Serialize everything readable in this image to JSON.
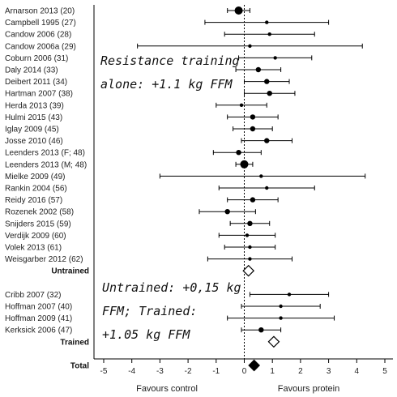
{
  "chart_data": {
    "type": "forest",
    "x_range": [
      -5,
      5
    ],
    "x_ticks": [
      -5,
      -4,
      -3,
      -2,
      -1,
      0,
      1,
      2,
      3,
      4,
      5
    ],
    "x_label_left": "Favours control",
    "x_label_right": "Favours protein",
    "reference_line": 0,
    "annotations": [
      {
        "name": "resistance-training",
        "lines": [
          "Resistance training",
          "alone: +1.1 kg FFM"
        ]
      },
      {
        "name": "untrained-trained",
        "lines": [
          "Untrained: +0,15 kg",
          "FFM; Trained:",
          "+1.05 kg FFM"
        ]
      }
    ],
    "rows": [
      {
        "label": "Arnarson 2013 (20)",
        "kind": "study",
        "est": -0.2,
        "lo": -0.6,
        "hi": 0.2,
        "size": "large"
      },
      {
        "label": "Campbell 1995 (27)",
        "kind": "study",
        "est": 0.8,
        "lo": -1.4,
        "hi": 3.0,
        "size": "small"
      },
      {
        "label": "Candow 2006 (28)",
        "kind": "study",
        "est": 0.9,
        "lo": -0.7,
        "hi": 2.5,
        "size": "small"
      },
      {
        "label": "Candow 2006a (29)",
        "kind": "study",
        "est": 0.2,
        "lo": -3.8,
        "hi": 4.2,
        "size": "small"
      },
      {
        "label": "Coburn 2006 (31)",
        "kind": "study",
        "est": 1.1,
        "lo": -0.2,
        "hi": 2.4,
        "size": "small"
      },
      {
        "label": "Daly 2014 (33)",
        "kind": "study",
        "est": 0.5,
        "lo": -0.3,
        "hi": 1.3,
        "size": "medium"
      },
      {
        "label": "Deibert 2011 (34)",
        "kind": "study",
        "est": 0.8,
        "lo": 0.0,
        "hi": 1.6,
        "size": "medium"
      },
      {
        "label": "Hartman 2007 (38)",
        "kind": "study",
        "est": 0.9,
        "lo": 0.0,
        "hi": 1.8,
        "size": "medium"
      },
      {
        "label": "Herda 2013 (39)",
        "kind": "study",
        "est": -0.1,
        "lo": -1.0,
        "hi": 0.8,
        "size": "small"
      },
      {
        "label": "Hulmi 2015 (43)",
        "kind": "study",
        "est": 0.3,
        "lo": -0.6,
        "hi": 1.2,
        "size": "medium"
      },
      {
        "label": "Iglay 2009 (45)",
        "kind": "study",
        "est": 0.3,
        "lo": -0.4,
        "hi": 1.0,
        "size": "medium"
      },
      {
        "label": "Josse 2010 (46)",
        "kind": "study",
        "est": 0.8,
        "lo": -0.1,
        "hi": 1.7,
        "size": "medium"
      },
      {
        "label": "Leenders 2013 (F; 48)",
        "kind": "study",
        "est": -0.2,
        "lo": -1.1,
        "hi": 0.6,
        "size": "medium"
      },
      {
        "label": "Leenders 2013 (M; 48)",
        "kind": "study",
        "est": 0.0,
        "lo": -0.3,
        "hi": 0.3,
        "size": "large"
      },
      {
        "label": "Mielke 2009 (49)",
        "kind": "study",
        "est": 0.6,
        "lo": -3.0,
        "hi": 4.3,
        "size": "small"
      },
      {
        "label": "Rankin 2004 (56)",
        "kind": "study",
        "est": 0.8,
        "lo": -0.9,
        "hi": 2.5,
        "size": "small"
      },
      {
        "label": "Reidy 2016 (57)",
        "kind": "study",
        "est": 0.3,
        "lo": -0.6,
        "hi": 1.2,
        "size": "medium"
      },
      {
        "label": "Rozenek 2002 (58)",
        "kind": "study",
        "est": -0.6,
        "lo": -1.6,
        "hi": 0.4,
        "size": "medium"
      },
      {
        "label": "Snijders 2015 (59)",
        "kind": "study",
        "est": 0.2,
        "lo": -0.5,
        "hi": 0.9,
        "size": "medium"
      },
      {
        "label": "Verdijk 2009 (60)",
        "kind": "study",
        "est": 0.1,
        "lo": -0.9,
        "hi": 1.1,
        "size": "small"
      },
      {
        "label": "Volek 2013 (61)",
        "kind": "study",
        "est": 0.2,
        "lo": -0.7,
        "hi": 1.1,
        "size": "small"
      },
      {
        "label": "Weisgarber 2012 (62)",
        "kind": "study",
        "est": 0.2,
        "lo": -1.3,
        "hi": 1.7,
        "size": "small"
      },
      {
        "label": "Untrained",
        "kind": "summary-open",
        "est": 0.15
      },
      {
        "label": "",
        "kind": "spacer"
      },
      {
        "label": "Cribb 2007 (32)",
        "kind": "study",
        "est": 1.6,
        "lo": 0.2,
        "hi": 3.0,
        "size": "small"
      },
      {
        "label": "Hoffman 2007 (40)",
        "kind": "study",
        "est": 1.3,
        "lo": -0.1,
        "hi": 2.7,
        "size": "small"
      },
      {
        "label": "Hoffman 2009 (41)",
        "kind": "study",
        "est": 1.3,
        "lo": -0.6,
        "hi": 3.2,
        "size": "small"
      },
      {
        "label": "Kerksick 2006 (47)",
        "kind": "study",
        "est": 0.6,
        "lo": -0.1,
        "hi": 1.3,
        "size": "medium"
      },
      {
        "label": "Trained",
        "kind": "summary-open",
        "est": 1.05
      },
      {
        "label": "",
        "kind": "spacer"
      },
      {
        "label": "Total",
        "kind": "summary-filled",
        "est": 0.35
      }
    ]
  }
}
